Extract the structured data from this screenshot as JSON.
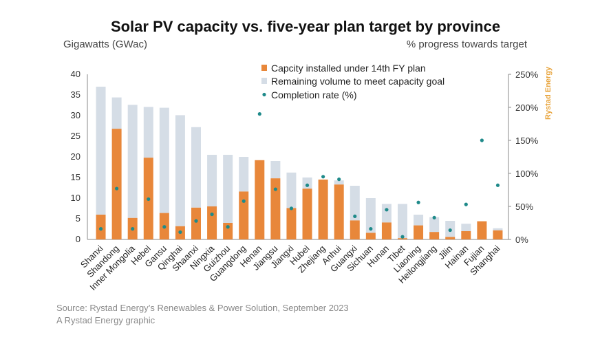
{
  "header": {
    "title": "Solar PV capacity vs. five-year plan target by province",
    "left_axis_title": "Gigawatts (GWac)",
    "right_axis_title": "% progress towards target"
  },
  "brand": {
    "text": "Rystad Energy",
    "color": "#e8a33a"
  },
  "footer": {
    "source": "Source: Rystad Energy’s Renewables & Power Solution, September 2023",
    "credit": "A Rystad Energy graphic"
  },
  "colors": {
    "installed": "#e8873a",
    "remaining": "#d5dde6",
    "rate": "#1f8a8a"
  },
  "chart_data": {
    "type": "bar",
    "stacked": true,
    "categories": [
      "Shanxi",
      "Shandong",
      "Inner Mongolia",
      "Hebei",
      "Gansu",
      "Qinghai",
      "Shaanxi",
      "Ningxia",
      "Guizhou",
      "Guangdong",
      "Henan",
      "Jiangsu",
      "Jiangxi",
      "Hubei",
      "Zhejiang",
      "Anhui",
      "Guangxi",
      "Sichuan",
      "Hunan",
      "Tibet",
      "Liaoning",
      "Heilongjiang",
      "Jilin",
      "Hainan",
      "Fujian",
      "Shanghai"
    ],
    "series": [
      {
        "name": "Capcity installed under 14th FY plan",
        "axis": "left",
        "values": [
          6.0,
          26.8,
          5.2,
          19.8,
          6.4,
          3.2,
          7.7,
          8.0,
          4.0,
          11.6,
          19.2,
          14.8,
          7.6,
          12.3,
          14.5,
          13.3,
          4.6,
          1.6,
          4.1,
          0.3,
          3.4,
          1.8,
          0.6,
          2.0,
          4.4,
          2.2
        ]
      },
      {
        "name": "Remaining volume to meet capacity goal",
        "axis": "left",
        "values": [
          31.0,
          7.6,
          27.4,
          12.3,
          25.5,
          26.9,
          19.5,
          12.5,
          16.5,
          8.4,
          0,
          4.2,
          8.6,
          2.7,
          0,
          1.0,
          8.4,
          8.4,
          4.5,
          8.3,
          2.6,
          3.6,
          3.9,
          1.8,
          0,
          0.5
        ]
      },
      {
        "name": "Completion rate (%)",
        "axis": "right",
        "mark": "scatter",
        "values": [
          16,
          77,
          16,
          61,
          19,
          11,
          28,
          38,
          19,
          58,
          190,
          76,
          47,
          82,
          95,
          91,
          35,
          16,
          45,
          4,
          56,
          33,
          14,
          53,
          150,
          82
        ]
      }
    ],
    "ylim_left": [
      0,
      40
    ],
    "yticks_left": [
      0,
      5,
      10,
      15,
      20,
      25,
      30,
      35,
      40
    ],
    "ylim_right": [
      0,
      250
    ],
    "yticks_right": [
      "0%",
      "50%",
      "100%",
      "150%",
      "200%",
      "250%"
    ],
    "ylabel": "Gigawatts (GWac)",
    "ylabel_right": "% progress towards target",
    "grid": false,
    "legend_position": "top-right"
  }
}
